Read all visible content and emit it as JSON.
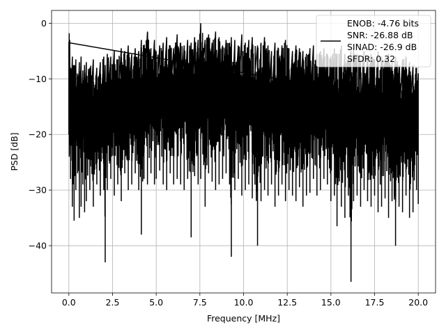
{
  "chart_data": {
    "type": "line",
    "title": "",
    "xlabel": "Frequency [MHz]",
    "ylabel": "PSD [dB]",
    "xlim": [
      -0.99,
      20.99
    ],
    "ylim": [
      -48.5,
      2.3
    ],
    "xticks": [
      0.0,
      2.5,
      5.0,
      7.5,
      10.0,
      12.5,
      15.0,
      17.5,
      20.0
    ],
    "xtick_labels": [
      "0.0",
      "2.5",
      "5.0",
      "7.5",
      "10.0",
      "12.5",
      "15.0",
      "17.5",
      "20.0"
    ],
    "yticks": [
      0,
      -10,
      -20,
      -30,
      -40
    ],
    "ytick_labels": [
      "0",
      "−10",
      "−20",
      "−30",
      "−40"
    ],
    "grid": true,
    "legend_position": "top-right",
    "legend_lines": [
      "ENOB: -4.76 bits",
      "SNR: -26.88 dB",
      "SINAD: -26.9 dB",
      "SFDR: 0.32"
    ],
    "series": [
      {
        "color": "#000000",
        "description": "dense noisy power spectral density trace from 0 to 20 MHz",
        "x": [
          0.0,
          0.02,
          0.05,
          0.1,
          0.2,
          0.3,
          0.4,
          0.5,
          0.6,
          0.7,
          0.8,
          0.9,
          1.0,
          1.2,
          1.4,
          1.6,
          1.8,
          2.0,
          2.08,
          2.2,
          2.4,
          2.6,
          2.8,
          3.0,
          3.2,
          3.4,
          3.6,
          3.8,
          4.0,
          4.15,
          4.3,
          4.5,
          4.7,
          4.9,
          5.0,
          5.2,
          5.4,
          5.6,
          5.8,
          6.0,
          6.2,
          6.4,
          6.6,
          6.8,
          7.0,
          7.2,
          7.4,
          7.55,
          7.8,
          8.0,
          8.2,
          8.4,
          8.6,
          8.8,
          9.0,
          9.2,
          9.3,
          9.5,
          9.7,
          9.9,
          10.1,
          10.3,
          10.5,
          10.8,
          11.0,
          11.2,
          11.4,
          11.6,
          11.8,
          12.0,
          12.2,
          12.4,
          12.6,
          12.8,
          13.0,
          13.2,
          13.4,
          13.6,
          13.8,
          14.0,
          14.2,
          14.4,
          14.6,
          14.8,
          15.0,
          15.2,
          15.35,
          15.6,
          15.8,
          16.0,
          16.15,
          16.3,
          16.5,
          16.7,
          16.9,
          17.1,
          17.3,
          17.5,
          17.7,
          17.9,
          18.1,
          18.3,
          18.5,
          18.7,
          18.9,
          19.1,
          19.3,
          19.5,
          19.7,
          19.9,
          20.0
        ],
        "y_upper": [
          -3.5,
          -1.8,
          -3.0,
          -8.0,
          -6.0,
          -7.5,
          -6.5,
          -9.5,
          -7.0,
          -6.0,
          -8.5,
          -7.5,
          -7.0,
          -8.0,
          -6.5,
          -8.0,
          -7.0,
          -6.0,
          -7.5,
          -5.5,
          -6.0,
          -5.0,
          -6.5,
          -4.5,
          -5.0,
          -4.0,
          -5.5,
          -4.5,
          -5.0,
          -3.0,
          -4.0,
          -1.5,
          -4.5,
          -3.0,
          -5.0,
          -4.0,
          -3.5,
          -2.5,
          -4.0,
          -4.5,
          -2.0,
          -3.5,
          -4.0,
          -3.0,
          -3.5,
          -2.5,
          -3.0,
          0.0,
          -3.0,
          -2.0,
          -3.5,
          -1.5,
          -2.5,
          -4.0,
          -3.0,
          -3.5,
          -2.5,
          -3.0,
          -4.0,
          -2.0,
          -3.5,
          -3.0,
          -2.5,
          -4.0,
          -3.5,
          -2.5,
          -4.0,
          -5.0,
          -3.5,
          -4.5,
          -4.0,
          -3.0,
          -4.5,
          -5.0,
          -4.0,
          -4.5,
          -5.0,
          -5.5,
          -4.5,
          -4.0,
          -5.5,
          -5.0,
          -4.5,
          -5.5,
          -6.0,
          -4.5,
          -5.5,
          -4.0,
          -5.5,
          -6.0,
          -5.0,
          -4.5,
          -5.5,
          -6.5,
          -5.0,
          -6.0,
          -5.5,
          -6.5,
          -5.0,
          -6.0,
          -6.5,
          -5.5,
          -7.0,
          -6.0,
          -7.5,
          -6.5,
          -6.0,
          -7.0,
          -7.5,
          -8.0,
          -9.0
        ],
        "y_lower": [
          -20.0,
          -24.0,
          -22.0,
          -28.0,
          -33.0,
          -35.5,
          -30.0,
          -27.0,
          -35.0,
          -33.0,
          -29.0,
          -34.0,
          -32.0,
          -30.0,
          -33.0,
          -29.0,
          -31.0,
          -30.0,
          -43.0,
          -30.0,
          -28.0,
          -31.0,
          -29.0,
          -32.0,
          -27.0,
          -30.0,
          -29.0,
          -27.0,
          -30.0,
          -38.0,
          -28.0,
          -29.0,
          -27.0,
          -29.0,
          -28.0,
          -26.5,
          -29.0,
          -30.0,
          -27.0,
          -29.0,
          -28.0,
          -29.0,
          -30.0,
          -28.0,
          -38.5,
          -27.5,
          -29.0,
          -28.0,
          -33.0,
          -27.0,
          -28.5,
          -30.0,
          -29.0,
          -28.0,
          -27.0,
          -29.0,
          -42.0,
          -30.0,
          -28.0,
          -31.0,
          -30.0,
          -29.0,
          -31.5,
          -40.0,
          -32.0,
          -30.0,
          -31.0,
          -29.0,
          -33.0,
          -31.0,
          -29.0,
          -32.0,
          -30.0,
          -31.0,
          -32.0,
          -29.5,
          -33.0,
          -31.0,
          -30.5,
          -28.0,
          -31.0,
          -30.0,
          -28.0,
          -29.0,
          -32.0,
          -31.0,
          -36.5,
          -33.0,
          -35.0,
          -31.0,
          -46.5,
          -32.0,
          -31.0,
          -33.0,
          -30.0,
          -32.0,
          -33.0,
          -31.0,
          -34.0,
          -33.0,
          -31.5,
          -35.0,
          -32.0,
          -40.0,
          -33.0,
          -34.0,
          -31.0,
          -35.0,
          -34.0,
          -30.0,
          -32.5
        ]
      }
    ]
  }
}
